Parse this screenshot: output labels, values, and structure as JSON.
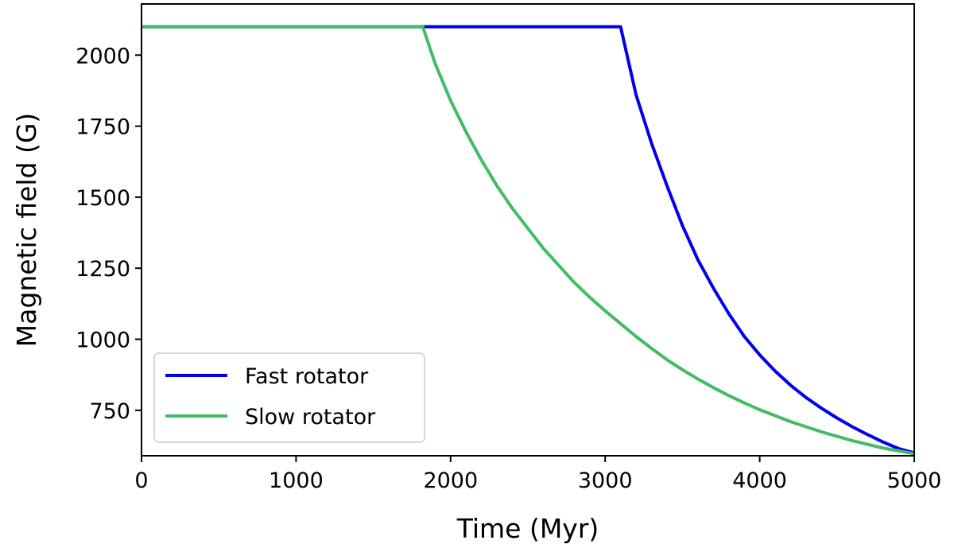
{
  "chart_data": {
    "type": "line",
    "title": "",
    "xlabel": "Time (Myr)",
    "ylabel": "Magnetic field (G)",
    "xlim": [
      0,
      5000
    ],
    "ylim": [
      590,
      2180
    ],
    "xticks": [
      0,
      1000,
      2000,
      3000,
      4000,
      5000
    ],
    "xtick_labels": [
      "0",
      "1000",
      "2000",
      "3000",
      "4000",
      "5000"
    ],
    "yticks": [
      750,
      1000,
      1250,
      1500,
      1750,
      2000
    ],
    "ytick_labels": [
      "750",
      "1000",
      "1250",
      "1500",
      "1750",
      "2000"
    ],
    "grid": false,
    "legend_position": "lower-left",
    "series": [
      {
        "name": "Fast rotator",
        "color": "#0000ee",
        "x": [
          0,
          3100,
          3200,
          3300,
          3400,
          3500,
          3600,
          3700,
          3800,
          3900,
          4000,
          4100,
          4200,
          4300,
          4400,
          4500,
          4600,
          4700,
          4800,
          4900,
          5000
        ],
        "y": [
          2100,
          2100,
          1860,
          1690,
          1540,
          1400,
          1280,
          1180,
          1090,
          1010,
          945,
          888,
          838,
          795,
          757,
          723,
          692,
          664,
          638,
          615,
          600
        ]
      },
      {
        "name": "Slow rotator",
        "color": "#44bb66",
        "x": [
          0,
          1820,
          1900,
          2000,
          2100,
          2200,
          2300,
          2400,
          2500,
          2600,
          2700,
          2800,
          2900,
          3000,
          3100,
          3200,
          3300,
          3400,
          3500,
          3600,
          3700,
          3800,
          3900,
          4000,
          4200,
          4400,
          4600,
          4800,
          5000
        ],
        "y": [
          2100,
          2100,
          1970,
          1840,
          1730,
          1630,
          1540,
          1460,
          1390,
          1320,
          1260,
          1200,
          1148,
          1100,
          1055,
          1010,
          968,
          928,
          893,
          860,
          830,
          802,
          776,
          752,
          710,
          674,
          643,
          617,
          597
        ]
      }
    ]
  }
}
